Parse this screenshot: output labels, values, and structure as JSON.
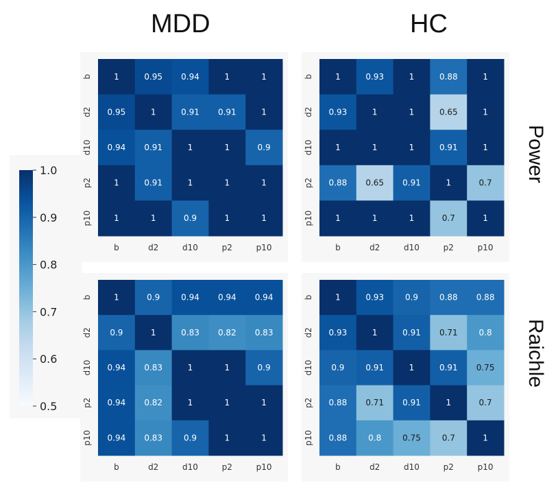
{
  "figure": {
    "col_titles": [
      "MDD",
      "HC"
    ],
    "row_titles": [
      "Power",
      "Raichle"
    ]
  },
  "colorbar": {
    "min": 0.5,
    "max": 1.0,
    "ticks": [
      "1.0",
      "0.9",
      "0.8",
      "0.7",
      "0.6",
      "0.5"
    ],
    "colormap": [
      "#f7fbff",
      "#deebf7",
      "#c6dbef",
      "#9ecae1",
      "#6baed6",
      "#4292c6",
      "#2171b5",
      "#08519c",
      "#08306b"
    ]
  },
  "chart_data": [
    {
      "type": "heatmap",
      "group": "MDD",
      "atlas": "Power",
      "labels": [
        "b",
        "d2",
        "d10",
        "p2",
        "p10"
      ],
      "matrix": [
        [
          1,
          0.95,
          0.94,
          1,
          1
        ],
        [
          0.95,
          1,
          0.91,
          0.91,
          1
        ],
        [
          0.94,
          0.91,
          1,
          1,
          0.9
        ],
        [
          1,
          0.91,
          1,
          1,
          1
        ],
        [
          1,
          1,
          0.9,
          1,
          1
        ]
      ],
      "vmin": 0.5,
      "vmax": 1.0
    },
    {
      "type": "heatmap",
      "group": "HC",
      "atlas": "Power",
      "labels": [
        "b",
        "d2",
        "d10",
        "p2",
        "p10"
      ],
      "matrix": [
        [
          1,
          0.93,
          1,
          0.88,
          1
        ],
        [
          0.93,
          1,
          1,
          0.65,
          1
        ],
        [
          1,
          1,
          1,
          0.91,
          1
        ],
        [
          0.88,
          0.65,
          0.91,
          1,
          0.7
        ],
        [
          1,
          1,
          1,
          0.7,
          1
        ]
      ],
      "vmin": 0.5,
      "vmax": 1.0
    },
    {
      "type": "heatmap",
      "group": "MDD",
      "atlas": "Raichle",
      "labels": [
        "b",
        "d2",
        "d10",
        "p2",
        "p10"
      ],
      "matrix": [
        [
          1,
          0.9,
          0.94,
          0.94,
          0.94
        ],
        [
          0.9,
          1,
          0.83,
          0.82,
          0.83
        ],
        [
          0.94,
          0.83,
          1,
          1,
          0.9
        ],
        [
          0.94,
          0.82,
          1,
          1,
          1
        ],
        [
          0.94,
          0.83,
          0.9,
          1,
          1
        ]
      ],
      "vmin": 0.5,
      "vmax": 1.0
    },
    {
      "type": "heatmap",
      "group": "HC",
      "atlas": "Raichle",
      "labels": [
        "b",
        "d2",
        "d10",
        "p2",
        "p10"
      ],
      "matrix": [
        [
          1,
          0.93,
          0.9,
          0.88,
          0.88
        ],
        [
          0.93,
          1,
          0.91,
          0.71,
          0.8
        ],
        [
          0.9,
          0.91,
          1,
          0.91,
          0.75
        ],
        [
          0.88,
          0.71,
          0.91,
          1,
          0.7
        ],
        [
          0.88,
          0.8,
          0.75,
          0.7,
          1
        ]
      ],
      "vmin": 0.5,
      "vmax": 1.0
    }
  ]
}
